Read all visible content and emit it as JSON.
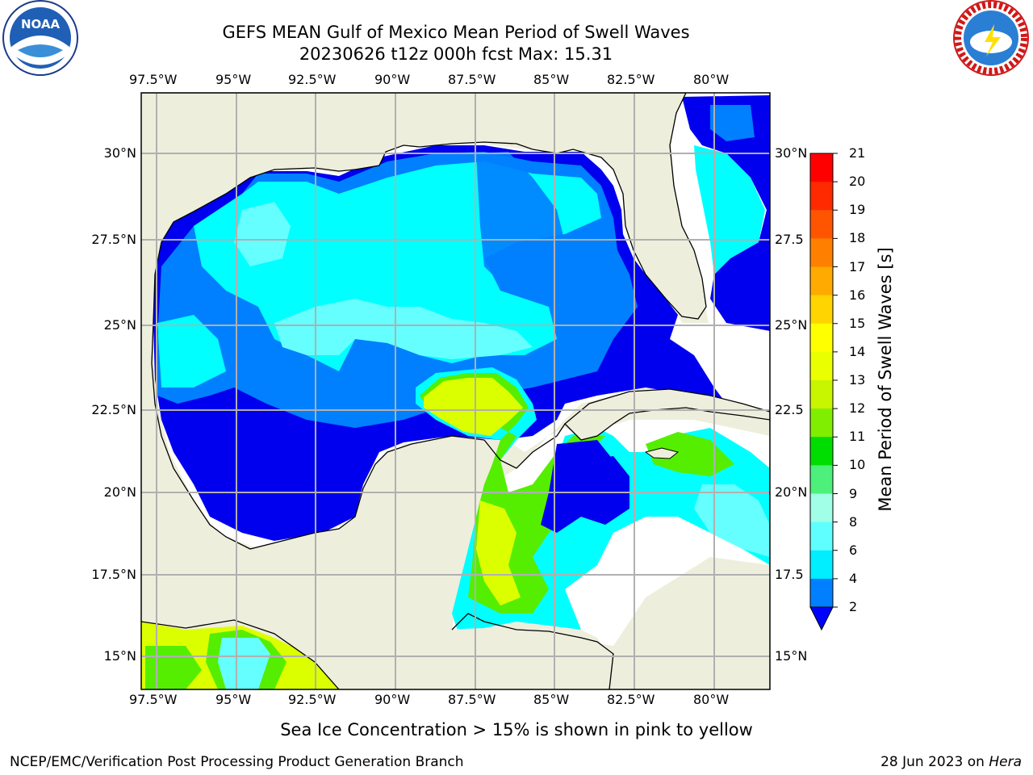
{
  "title": {
    "line1": "GEFS MEAN Gulf of Mexico Mean Period of Swell Waves",
    "line2": "20230626 t12z 000h fcst   Max: 15.31"
  },
  "axes": {
    "lon_labels": [
      "97.5°W",
      "95°W",
      "92.5°W",
      "90°W",
      "87.5°W",
      "85°W",
      "82.5°W",
      "80°W"
    ],
    "lat_labels_left": [
      "30°N",
      "27.5°N",
      "25°N",
      "22.5°N",
      "20°N",
      "17.5°N",
      "15°N"
    ],
    "lat_labels_right": [
      "30°N",
      "27.5",
      "25°N",
      "22.5",
      "20°N",
      "17.5",
      "15°N"
    ]
  },
  "colorbar": {
    "label": "Mean Period of Swell Waves [s]",
    "ticks": [
      "21",
      "20",
      "19",
      "18",
      "17",
      "16",
      "15",
      "14",
      "13",
      "12",
      "11",
      "10",
      "9",
      "8",
      "6",
      "4",
      "2"
    ],
    "colors": [
      "#ff0000",
      "#ff2a00",
      "#ff5500",
      "#ff8000",
      "#ffaa00",
      "#ffd400",
      "#ffff00",
      "#eaff00",
      "#c8f500",
      "#80ee00",
      "#00dd00",
      "#4cf07a",
      "#a0ffe6",
      "#60ffff",
      "#00eeff",
      "#0080ff",
      "#0000ff"
    ]
  },
  "colors": {
    "land": "#eeeedd",
    "grid": "#b0b0b0",
    "low": "#0000ee",
    "mid": "#0080ff",
    "high": "#00ffff",
    "pale": "#66ffff",
    "green": "#55ee00",
    "yellow": "#dcff00"
  },
  "logos": {
    "left": "NOAA",
    "right": "NATIONAL WEATHER SERVICE"
  },
  "footer": {
    "note": "Sea Ice Concentration > 15% is shown in pink to yellow",
    "credit": "NCEP/EMC/Verification Post Processing Product Generation Branch",
    "date": "28 Jun 2023 on",
    "machine": "Hera"
  }
}
